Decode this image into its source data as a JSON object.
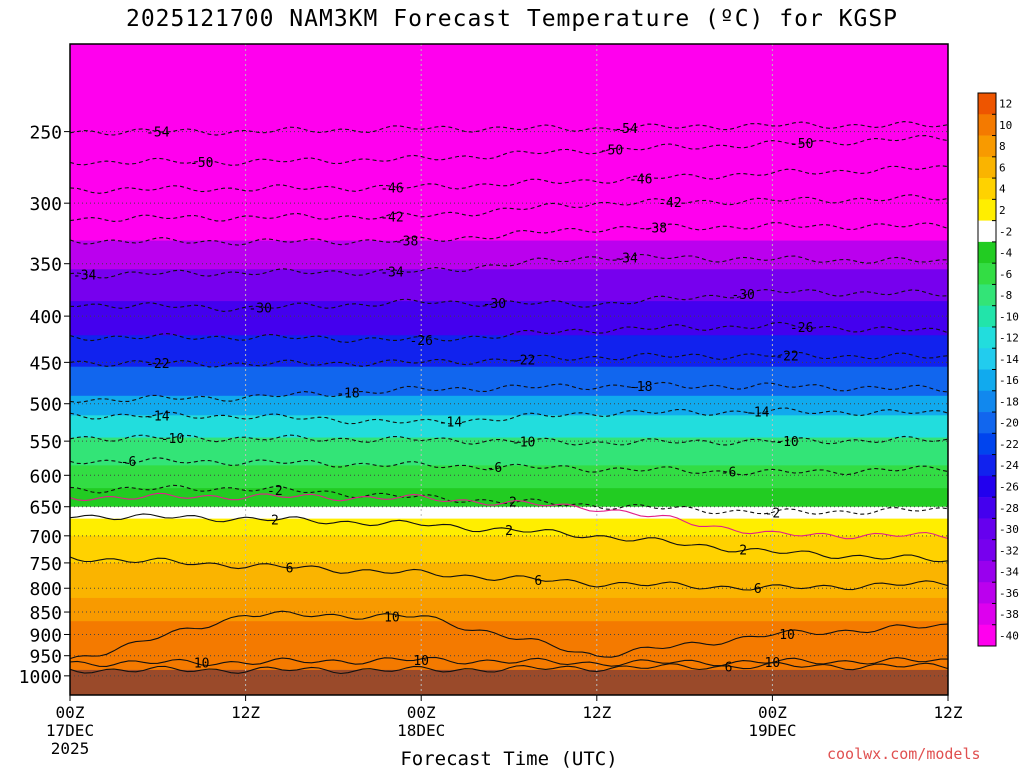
{
  "chart_data": {
    "type": "heatmap",
    "title": "2025121700 NAM3KM Forecast Temperature (ºC) for KGSP",
    "xlabel": "Forecast Time (UTC)",
    "ylabel": "",
    "y_scale": "log",
    "ylim": [
      1050,
      200
    ],
    "xlim": [
      0,
      60
    ],
    "x_unit": "hours since 2025-12-17 00Z",
    "x_ticks": [
      {
        "x": 0,
        "label": "00Z",
        "sub": "17DEC",
        "sub2": "2025"
      },
      {
        "x": 12,
        "label": "12Z",
        "sub": "",
        "sub2": ""
      },
      {
        "x": 24,
        "label": "00Z",
        "sub": "18DEC",
        "sub2": ""
      },
      {
        "x": 36,
        "label": "12Z",
        "sub": "",
        "sub2": ""
      },
      {
        "x": 48,
        "label": "00Z",
        "sub": "19DEC",
        "sub2": ""
      },
      {
        "x": 60,
        "label": "12Z",
        "sub": "",
        "sub2": ""
      }
    ],
    "y_ticks": [
      250,
      300,
      350,
      400,
      450,
      500,
      550,
      600,
      650,
      700,
      750,
      800,
      850,
      900,
      950,
      1000
    ],
    "surface_pressure": 985,
    "surface_color": "#9a4a2a",
    "colorbar": {
      "labels": [
        "12",
        "10",
        "8",
        "6",
        "4",
        "2",
        "-2",
        "-4",
        "-6",
        "-8",
        "-10",
        "-12",
        "-14",
        "-16",
        "-18",
        "-20",
        "-22",
        "-24",
        "-26",
        "-28",
        "-30",
        "-32",
        "-34",
        "-36",
        "-38",
        "-40"
      ],
      "colors": [
        "#ee5500",
        "#f47a00",
        "#f89a00",
        "#fab400",
        "#ffd200",
        "#ffee00",
        "#ffffff",
        "#22cc22",
        "#33dd44",
        "#33e477",
        "#22e4aa",
        "#22dddd",
        "#22ccee",
        "#11aaee",
        "#1188ee",
        "#1166ee",
        "#0044ee",
        "#1122ee",
        "#2200ee",
        "#4400ee",
        "#6600ee",
        "#7700ee",
        "#9900ee",
        "#bb00ee",
        "#dd00ee",
        "#ff00ee"
      ]
    },
    "temperature_profile": [
      {
        "p": 200,
        "t": -60
      },
      {
        "p": 250,
        "t": -54
      },
      {
        "p": 270,
        "t": -50
      },
      {
        "p": 290,
        "t": -46
      },
      {
        "p": 310,
        "t": -42
      },
      {
        "p": 330,
        "t": -38
      },
      {
        "p": 355,
        "t": -34
      },
      {
        "p": 385,
        "t": -30
      },
      {
        "p": 420,
        "t": -26
      },
      {
        "p": 455,
        "t": -22
      },
      {
        "p": 490,
        "t": -18
      },
      {
        "p": 515,
        "t": -14
      },
      {
        "p": 545,
        "t": -10
      },
      {
        "p": 585,
        "t": -6
      },
      {
        "p": 620,
        "t": -4
      },
      {
        "p": 650,
        "t": -2
      },
      {
        "p": 670,
        "t": 2
      },
      {
        "p": 700,
        "t": 3
      },
      {
        "p": 750,
        "t": 6
      },
      {
        "p": 820,
        "t": 8
      },
      {
        "p": 870,
        "t": 10
      },
      {
        "p": 930,
        "t": 11
      },
      {
        "p": 985,
        "t": 10
      }
    ],
    "contours": [
      {
        "level": -54,
        "style": "dashed",
        "p": [
          250,
          250,
          248,
          248,
          246,
          246
        ],
        "labels": [
          {
            "x": 6,
            "text": "-54"
          },
          {
            "x": 38,
            "text": "-54"
          }
        ]
      },
      {
        "level": -50,
        "style": "dashed",
        "p": [
          270,
          270,
          268,
          262,
          258,
          254
        ],
        "labels": [
          {
            "x": 9,
            "text": "-50"
          },
          {
            "x": 37,
            "text": "-50"
          },
          {
            "x": 50,
            "text": "-50"
          }
        ]
      },
      {
        "level": -46,
        "style": "dashed",
        "p": [
          290,
          289,
          288,
          283,
          278,
          274
        ],
        "labels": [
          {
            "x": 22,
            "text": "-46"
          },
          {
            "x": 39,
            "text": "-46"
          }
        ]
      },
      {
        "level": -42,
        "style": "dashed",
        "p": [
          312,
          311,
          310,
          300,
          298,
          296
        ],
        "labels": [
          {
            "x": 22,
            "text": "-42"
          },
          {
            "x": 41,
            "text": "-42"
          }
        ]
      },
      {
        "level": -38,
        "style": "dashed",
        "p": [
          330,
          331,
          330,
          320,
          318,
          318
        ],
        "labels": [
          {
            "x": 23,
            "text": "-38"
          },
          {
            "x": 40,
            "text": "-38"
          }
        ]
      },
      {
        "level": -34,
        "style": "dashed",
        "p": [
          360,
          358,
          357,
          344,
          346,
          348
        ],
        "labels": [
          {
            "x": 1,
            "text": "-34"
          },
          {
            "x": 22,
            "text": "-34"
          },
          {
            "x": 38,
            "text": "-34"
          }
        ]
      },
      {
        "level": -30,
        "style": "dashed",
        "p": [
          388,
          392,
          386,
          388,
          376,
          378
        ],
        "labels": [
          {
            "x": 13,
            "text": "-30"
          },
          {
            "x": 29,
            "text": "-30"
          },
          {
            "x": 46,
            "text": "-30"
          }
        ]
      },
      {
        "level": -26,
        "style": "dashed",
        "p": [
          422,
          422,
          425,
          414,
          410,
          416
        ],
        "labels": [
          {
            "x": 24,
            "text": "-26"
          },
          {
            "x": 50,
            "text": "-26"
          }
        ]
      },
      {
        "level": -22,
        "style": "dashed",
        "p": [
          450,
          452,
          450,
          444,
          442,
          444
        ],
        "labels": [
          {
            "x": 6,
            "text": "-22"
          },
          {
            "x": 31,
            "text": "-22"
          },
          {
            "x": 49,
            "text": "-22"
          }
        ]
      },
      {
        "level": -18,
        "style": "dashed",
        "p": [
          495,
          492,
          482,
          478,
          478,
          482
        ],
        "labels": [
          {
            "x": 19,
            "text": "-18"
          },
          {
            "x": 39,
            "text": "-18"
          }
        ]
      },
      {
        "level": -14,
        "style": "dashed",
        "p": [
          515,
          516,
          525,
          512,
          510,
          512
        ],
        "labels": [
          {
            "x": 6,
            "text": "-14"
          },
          {
            "x": 26,
            "text": "-14"
          },
          {
            "x": 47,
            "text": "-14"
          }
        ]
      },
      {
        "level": -10,
        "style": "dashed",
        "p": [
          545,
          546,
          548,
          552,
          550,
          548
        ],
        "labels": [
          {
            "x": 7,
            "text": "-10"
          },
          {
            "x": 31,
            "text": "-10"
          },
          {
            "x": 49,
            "text": "-10"
          }
        ]
      },
      {
        "level": -6,
        "style": "dashed",
        "p": [
          578,
          580,
          585,
          590,
          596,
          590
        ],
        "labels": [
          {
            "x": 4,
            "text": "-6"
          },
          {
            "x": 29,
            "text": "-6"
          },
          {
            "x": 45,
            "text": "-6"
          }
        ]
      },
      {
        "level": -2,
        "style": "dashed",
        "p": [
          622,
          620,
          635,
          648,
          660,
          655
        ],
        "labels": [
          {
            "x": 14,
            "text": "-2"
          },
          {
            "x": 30,
            "text": "-2"
          },
          {
            "x": 48,
            "text": "-2"
          }
        ]
      },
      {
        "level": 0,
        "style": "magenta",
        "p": [
          635,
          633,
          636,
          652,
          698,
          700
        ],
        "labels": []
      },
      {
        "level": 2,
        "style": "solid",
        "p": [
          665,
          670,
          680,
          700,
          730,
          745
        ],
        "labels": [
          {
            "x": 14,
            "text": "2"
          },
          {
            "x": 30,
            "text": "2"
          },
          {
            "x": 46,
            "text": "2"
          }
        ]
      },
      {
        "level": 6,
        "style": "solid",
        "p": [
          740,
          755,
          770,
          790,
          800,
          790
        ],
        "labels": [
          {
            "x": 15,
            "text": "6"
          },
          {
            "x": 32,
            "text": "6"
          },
          {
            "x": 47,
            "text": "6"
          }
        ]
      },
      {
        "level": 10,
        "style": "solid",
        "p": [
          960,
          855,
          860,
          950,
          900,
          880
        ],
        "labels": [
          {
            "x": 22,
            "text": "10"
          },
          {
            "x": 49,
            "text": "10"
          }
        ]
      },
      {
        "level": 10,
        "style": "solid",
        "p": [
          968,
          966,
          960,
          968,
          965,
          962
        ],
        "labels": [
          {
            "x": 9,
            "text": "10"
          },
          {
            "x": 24,
            "text": "10"
          },
          {
            "x": 48,
            "text": "10"
          }
        ]
      },
      {
        "level": 6,
        "style": "solid",
        "p": [
          985,
          985,
          985,
          980,
          975,
          976
        ],
        "labels": [
          {
            "x": 45,
            "text": "6"
          }
        ]
      }
    ]
  },
  "watermark": "coolwx.com/models"
}
